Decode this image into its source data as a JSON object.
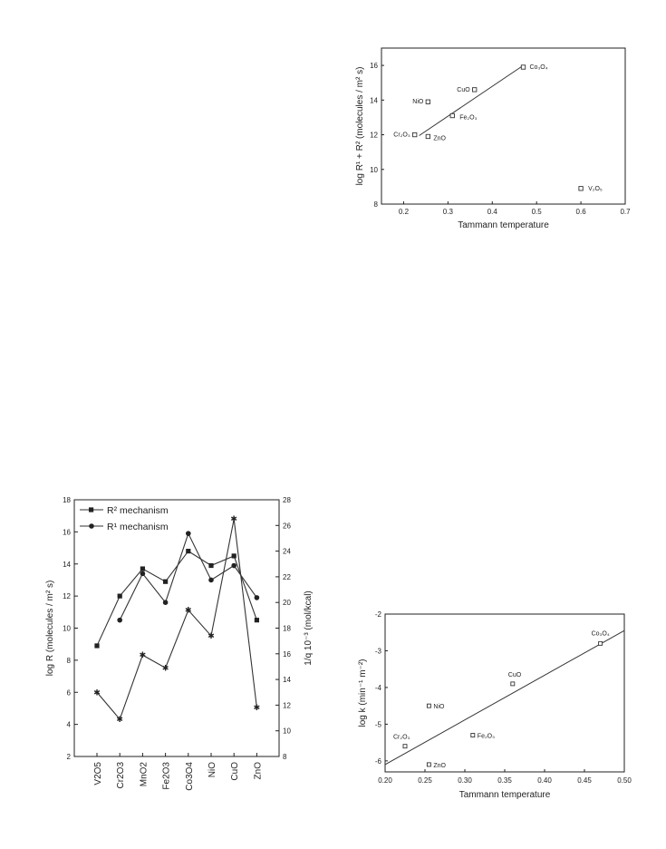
{
  "chart_data": [
    {
      "id": "chart1",
      "type": "scatter",
      "xlabel": "Tammann temperature",
      "ylabel": "log R¹ + R² (molecules / m² s)",
      "xlim": [
        0.15,
        0.7
      ],
      "ylim": [
        8,
        17
      ],
      "xticks": [
        "0.2",
        "0.3",
        "0.4",
        "0.5",
        "0.6",
        "0.7"
      ],
      "xtick_values": [
        0.2,
        0.3,
        0.4,
        0.5,
        0.6,
        0.7
      ],
      "yticks": [
        "8",
        "10",
        "12",
        "14",
        "16"
      ],
      "ytick_values": [
        8,
        10,
        12,
        14,
        16
      ],
      "points": [
        {
          "label": "Co₃O₄",
          "x": 0.47,
          "y": 15.9
        },
        {
          "label": "CuO",
          "x": 0.36,
          "y": 14.6
        },
        {
          "label": "NiO",
          "x": 0.255,
          "y": 13.9
        },
        {
          "label": "Fe₂O₃",
          "x": 0.31,
          "y": 13.1
        },
        {
          "label": "Cr₂O₃",
          "x": 0.225,
          "y": 12.0
        },
        {
          "label": "ZnO",
          "x": 0.255,
          "y": 11.9
        },
        {
          "label": "V₂O₅",
          "x": 0.6,
          "y": 8.9
        }
      ],
      "fit_line": [
        [
          0.235,
          11.95
        ],
        [
          0.47,
          16.0
        ]
      ]
    },
    {
      "id": "chart2",
      "type": "line",
      "ylabel": "log R (molecules / m² s)",
      "y2label": "1/q 10⁻³ (mol/kcal)",
      "categories": [
        "V2O5",
        "Cr2O3",
        "MnO2",
        "Fe2O3",
        "Co3O4",
        "NiO",
        "CuO",
        "ZnO"
      ],
      "ylim": [
        2,
        18
      ],
      "yticks": [
        "2",
        "4",
        "6",
        "8",
        "10",
        "12",
        "14",
        "16",
        "18"
      ],
      "ytick_values": [
        2,
        4,
        6,
        8,
        10,
        12,
        14,
        16,
        18
      ],
      "y2lim": [
        8,
        28
      ],
      "y2ticks": [
        "8",
        "10",
        "12",
        "14",
        "16",
        "18",
        "20",
        "22",
        "24",
        "26",
        "28"
      ],
      "y2tick_values": [
        8,
        10,
        12,
        14,
        16,
        18,
        20,
        22,
        24,
        26,
        28
      ],
      "legend": [
        "R² mechanism",
        "R¹ mechanism"
      ],
      "series": [
        {
          "name": "R² mechanism",
          "marker": "square",
          "axis": "left",
          "values": [
            8.9,
            12.0,
            13.7,
            12.9,
            14.8,
            13.9,
            14.5,
            10.5
          ]
        },
        {
          "name": "R¹ mechanism",
          "marker": "circle",
          "axis": "left",
          "values": [
            null,
            10.5,
            13.4,
            11.6,
            15.9,
            13.0,
            13.9,
            11.9
          ]
        },
        {
          "marker": "star",
          "axis": "right",
          "values": [
            13.0,
            10.9,
            15.9,
            14.9,
            19.4,
            17.4,
            26.5,
            11.8
          ]
        }
      ]
    },
    {
      "id": "chart3",
      "type": "scatter",
      "xlabel": "Tammann temperature",
      "ylabel": "log k (min⁻¹ m⁻²)",
      "xlim": [
        0.2,
        0.5
      ],
      "ylim": [
        -6.3,
        -2
      ],
      "xticks": [
        "0.20",
        "0.25",
        "0.30",
        "0.35",
        "0.40",
        "0.45",
        "0.50"
      ],
      "xtick_values": [
        0.2,
        0.25,
        0.3,
        0.35,
        0.4,
        0.45,
        0.5
      ],
      "yticks": [
        "-6",
        "-5",
        "-4",
        "-3",
        "-2"
      ],
      "ytick_values": [
        -6,
        -5,
        -4,
        -3,
        -2
      ],
      "points": [
        {
          "label": "Co₃O₄",
          "x": 0.47,
          "y": -2.8
        },
        {
          "label": "CuO",
          "x": 0.36,
          "y": -3.9
        },
        {
          "label": "NiO",
          "x": 0.255,
          "y": -4.5
        },
        {
          "label": "Fe₂O₃",
          "x": 0.31,
          "y": -5.3
        },
        {
          "label": "Cr₂O₃",
          "x": 0.225,
          "y": -5.6
        },
        {
          "label": "ZnO",
          "x": 0.255,
          "y": -6.1
        }
      ],
      "fit_line": [
        [
          0.2,
          -6.1
        ],
        [
          0.5,
          -2.45
        ]
      ]
    }
  ]
}
